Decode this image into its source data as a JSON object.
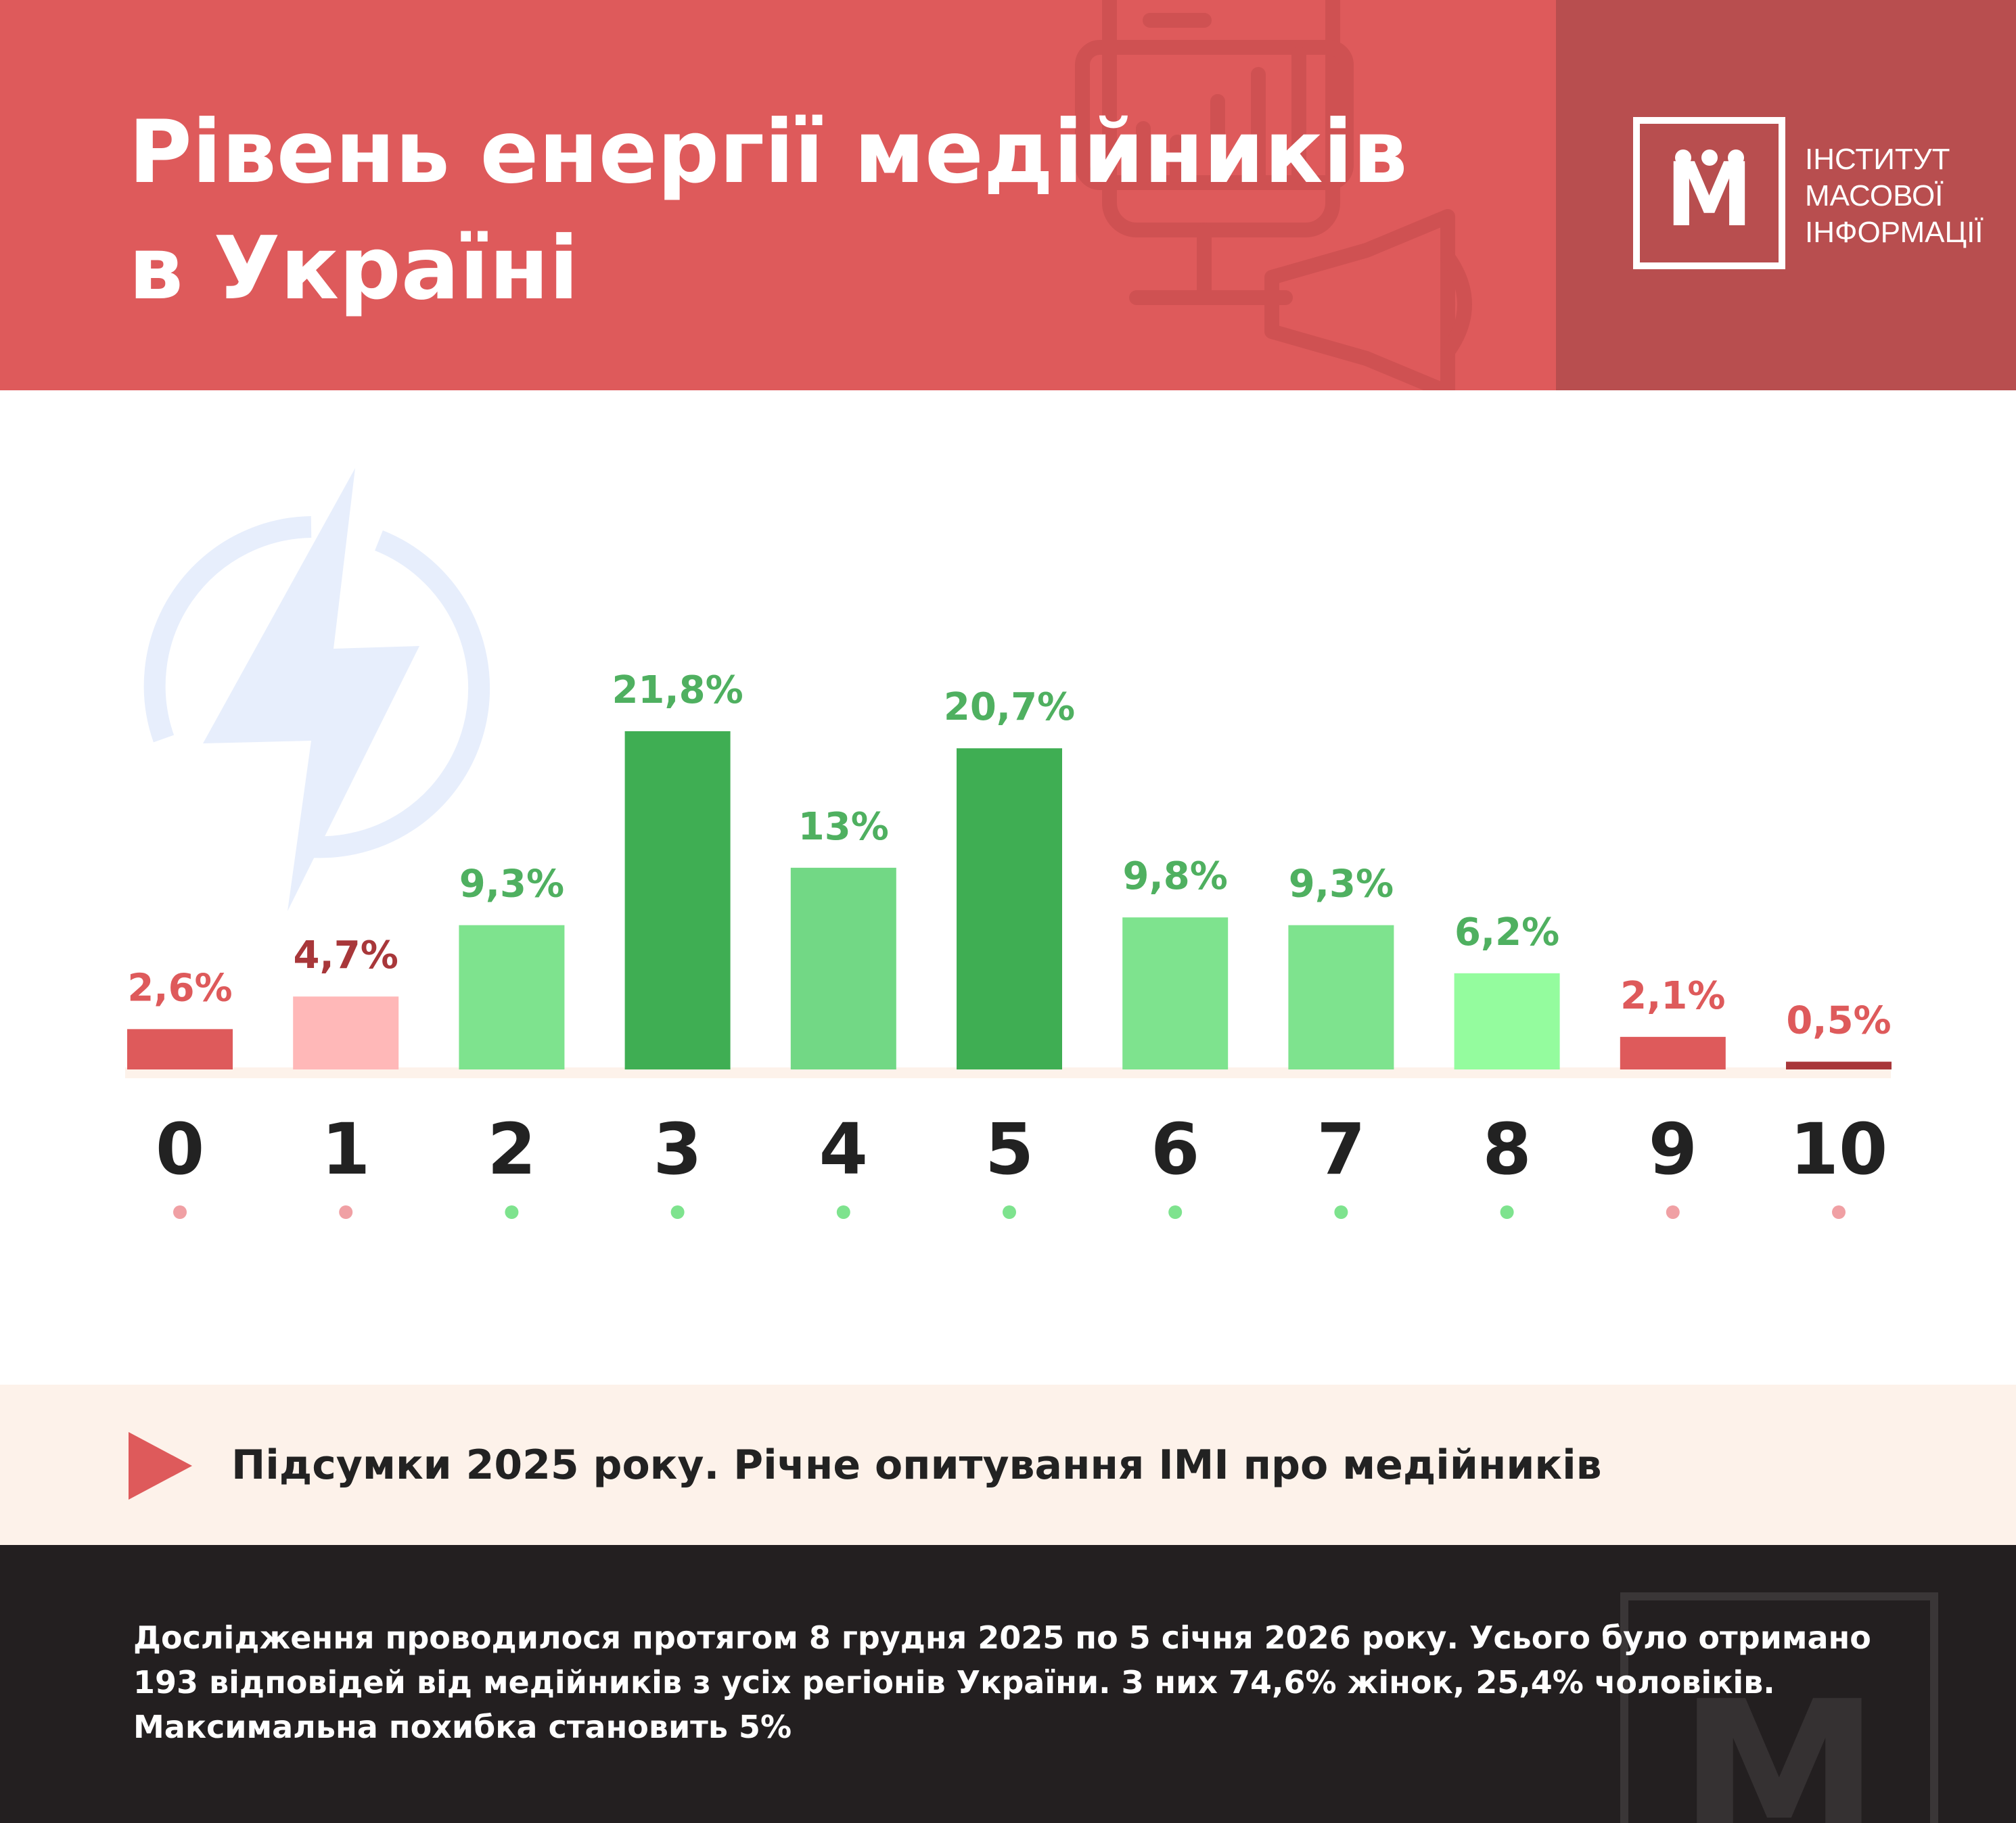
{
  "header": {
    "title": "Рівень енергії медійників\nв Україні",
    "logo_letter": "М",
    "logo_text": "ІНСТИТУТ\nМАСОВОЇ\nІНФОРМАЦІЇ"
  },
  "chart_data": {
    "type": "bar",
    "categories": [
      "0",
      "1",
      "2",
      "3",
      "4",
      "5",
      "6",
      "7",
      "8",
      "9",
      "10"
    ],
    "values": [
      2.6,
      4.7,
      9.3,
      21.8,
      13,
      20.7,
      9.8,
      9.3,
      6.2,
      2.1,
      0.5
    ],
    "value_labels": [
      "2,6%",
      "4,7%",
      "9,3%",
      "21,8%",
      "13%",
      "20,7%",
      "9,8%",
      "9,3%",
      "6,2%",
      "2,1%",
      "0,5%"
    ],
    "bar_colors": [
      "#de5a5b",
      "#ffb8b8",
      "#7ee38e",
      "#3fae53",
      "#72d885",
      "#3fae53",
      "#7ee38e",
      "#7ee38e",
      "#94fc9e",
      "#de5a5b",
      "#a8373a"
    ],
    "label_colors": [
      "#de5a5b",
      "#a8373a",
      "#4fb060",
      "#4fb060",
      "#4fb060",
      "#4fb060",
      "#4fb060",
      "#4fb060",
      "#4fb060",
      "#de5a5b",
      "#de5a5b"
    ],
    "dot_colors": [
      "#f0a0a4",
      "#f0a0a4",
      "#7ee38e",
      "#7ee38e",
      "#7ee38e",
      "#7ee38e",
      "#7ee38e",
      "#7ee38e",
      "#7ee38e",
      "#f0a0a4",
      "#f0a0a4"
    ],
    "ylim": [
      0,
      22
    ],
    "grid": false,
    "legend": "none"
  },
  "subtitle": "Підсумки 2025 року. Річне опитування ІМІ про медійників",
  "footer": {
    "text": "Дослідження проводилося протягом 8 грудня 2025 по 5 січня 2026 року. Усього було отримано 193 відповідей від медійників з усіх регіонів України. З них 74,6% жінок, 25,4% чоловіків. Максимальна похибка становить 5%"
  },
  "icons": {
    "lightning": "lightning-bolt-icon",
    "arrow": "play-arrow-icon",
    "header_illustration": "monitor-chart-megaphone-icon"
  }
}
